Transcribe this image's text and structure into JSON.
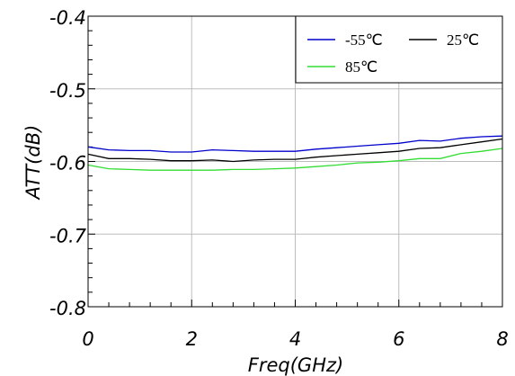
{
  "chart_data": {
    "type": "line",
    "xlabel": "Freq(GHz)",
    "ylabel": "ATT(dB)",
    "xlim": [
      0,
      8
    ],
    "ylim": [
      -0.8,
      -0.4
    ],
    "x_ticks": [
      "0",
      "2",
      "4",
      "6",
      "8"
    ],
    "y_ticks": [
      "-0.4",
      "-0.5",
      "-0.6",
      "-0.7",
      "-0.8"
    ],
    "grid": true,
    "legend_position": "top-right",
    "series": [
      {
        "name": "-55℃",
        "color": "#0000cc",
        "x": [
          0,
          0.4,
          0.8,
          1.2,
          1.6,
          2.0,
          2.4,
          2.8,
          3.2,
          3.6,
          4.0,
          4.4,
          4.8,
          5.2,
          5.6,
          6.0,
          6.4,
          6.8,
          7.2,
          7.6,
          8.0
        ],
        "y": [
          -0.58,
          -0.584,
          -0.585,
          -0.585,
          -0.587,
          -0.587,
          -0.584,
          -0.585,
          -0.586,
          -0.586,
          -0.586,
          -0.583,
          -0.581,
          -0.579,
          -0.577,
          -0.575,
          -0.571,
          -0.572,
          -0.568,
          -0.566,
          -0.565
        ]
      },
      {
        "name": "25℃",
        "color": "#000000",
        "x": [
          0,
          0.4,
          0.8,
          1.2,
          1.6,
          2.0,
          2.4,
          2.8,
          3.2,
          3.6,
          4.0,
          4.4,
          4.8,
          5.2,
          5.6,
          6.0,
          6.4,
          6.8,
          7.2,
          7.6,
          8.0
        ],
        "y": [
          -0.59,
          -0.596,
          -0.596,
          -0.597,
          -0.599,
          -0.599,
          -0.598,
          -0.6,
          -0.598,
          -0.597,
          -0.597,
          -0.594,
          -0.592,
          -0.59,
          -0.588,
          -0.586,
          -0.582,
          -0.581,
          -0.577,
          -0.573,
          -0.569
        ]
      },
      {
        "name": "85℃",
        "color": "#33dd33",
        "x": [
          0,
          0.4,
          0.8,
          1.2,
          1.6,
          2.0,
          2.4,
          2.8,
          3.2,
          3.6,
          4.0,
          4.4,
          4.8,
          5.2,
          5.6,
          6.0,
          6.4,
          6.8,
          7.2,
          7.6,
          8.0
        ],
        "y": [
          -0.605,
          -0.61,
          -0.611,
          -0.612,
          -0.612,
          -0.612,
          -0.612,
          -0.611,
          -0.611,
          -0.61,
          -0.609,
          -0.607,
          -0.605,
          -0.602,
          -0.601,
          -0.599,
          -0.596,
          -0.596,
          -0.589,
          -0.586,
          -0.582
        ]
      }
    ]
  }
}
